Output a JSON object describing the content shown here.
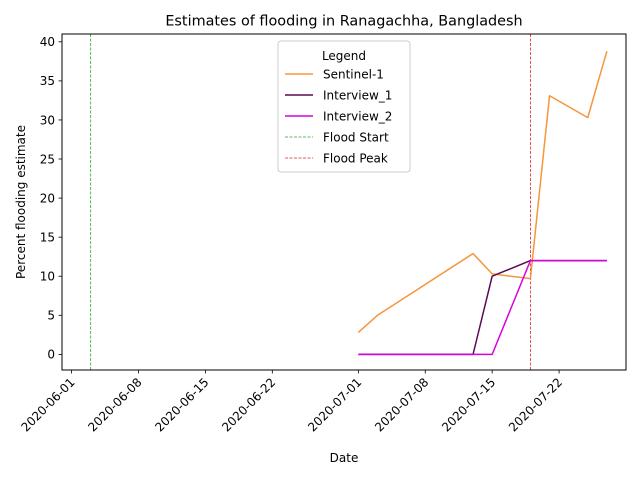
{
  "chart_data": {
    "type": "line",
    "title": "Estimates of flooding in Ranagachha, Bangladesh",
    "xlabel": "Date",
    "ylabel": "Percent flooding estimate",
    "x_axis_type": "date",
    "xlim": [
      "2020-05-31",
      "2020-07-29"
    ],
    "ylim": [
      -2,
      41
    ],
    "x_ticks": [
      "2020-06-01",
      "2020-06-08",
      "2020-06-15",
      "2020-06-22",
      "2020-07-01",
      "2020-07-08",
      "2020-07-15",
      "2020-07-22"
    ],
    "y_ticks": [
      0,
      5,
      10,
      15,
      20,
      25,
      30,
      35,
      40
    ],
    "grid": false,
    "legend": {
      "title": "Legend",
      "placement": "upper-center"
    },
    "series": [
      {
        "name": "Sentinel-1",
        "color": "#f7953b",
        "style": "solid",
        "points": [
          [
            "2020-07-01",
            2.8
          ],
          [
            "2020-07-03",
            5.0
          ],
          [
            "2020-07-13",
            12.9
          ],
          [
            "2020-07-15",
            10.3
          ],
          [
            "2020-07-19",
            9.7
          ],
          [
            "2020-07-21",
            33.1
          ],
          [
            "2020-07-25",
            30.3
          ],
          [
            "2020-07-27",
            38.8
          ]
        ]
      },
      {
        "name": "Interview_1",
        "color": "#5a0a57",
        "style": "solid",
        "points": [
          [
            "2020-07-01",
            0
          ],
          [
            "2020-07-13",
            0
          ],
          [
            "2020-07-15",
            10.0
          ],
          [
            "2020-07-19",
            12.0
          ],
          [
            "2020-07-27",
            12.0
          ]
        ]
      },
      {
        "name": "Interview_2",
        "color": "#d900d9",
        "style": "solid",
        "points": [
          [
            "2020-07-01",
            0
          ],
          [
            "2020-07-15",
            0
          ],
          [
            "2020-07-19",
            12.0
          ],
          [
            "2020-07-27",
            12.0
          ]
        ]
      }
    ],
    "vlines": [
      {
        "name": "Flood Start",
        "date": "2020-06-03",
        "color": "#2ca02c",
        "style": "dashed"
      },
      {
        "name": "Flood Peak",
        "date": "2020-07-19",
        "color": "#d62728",
        "style": "dashed"
      }
    ]
  }
}
